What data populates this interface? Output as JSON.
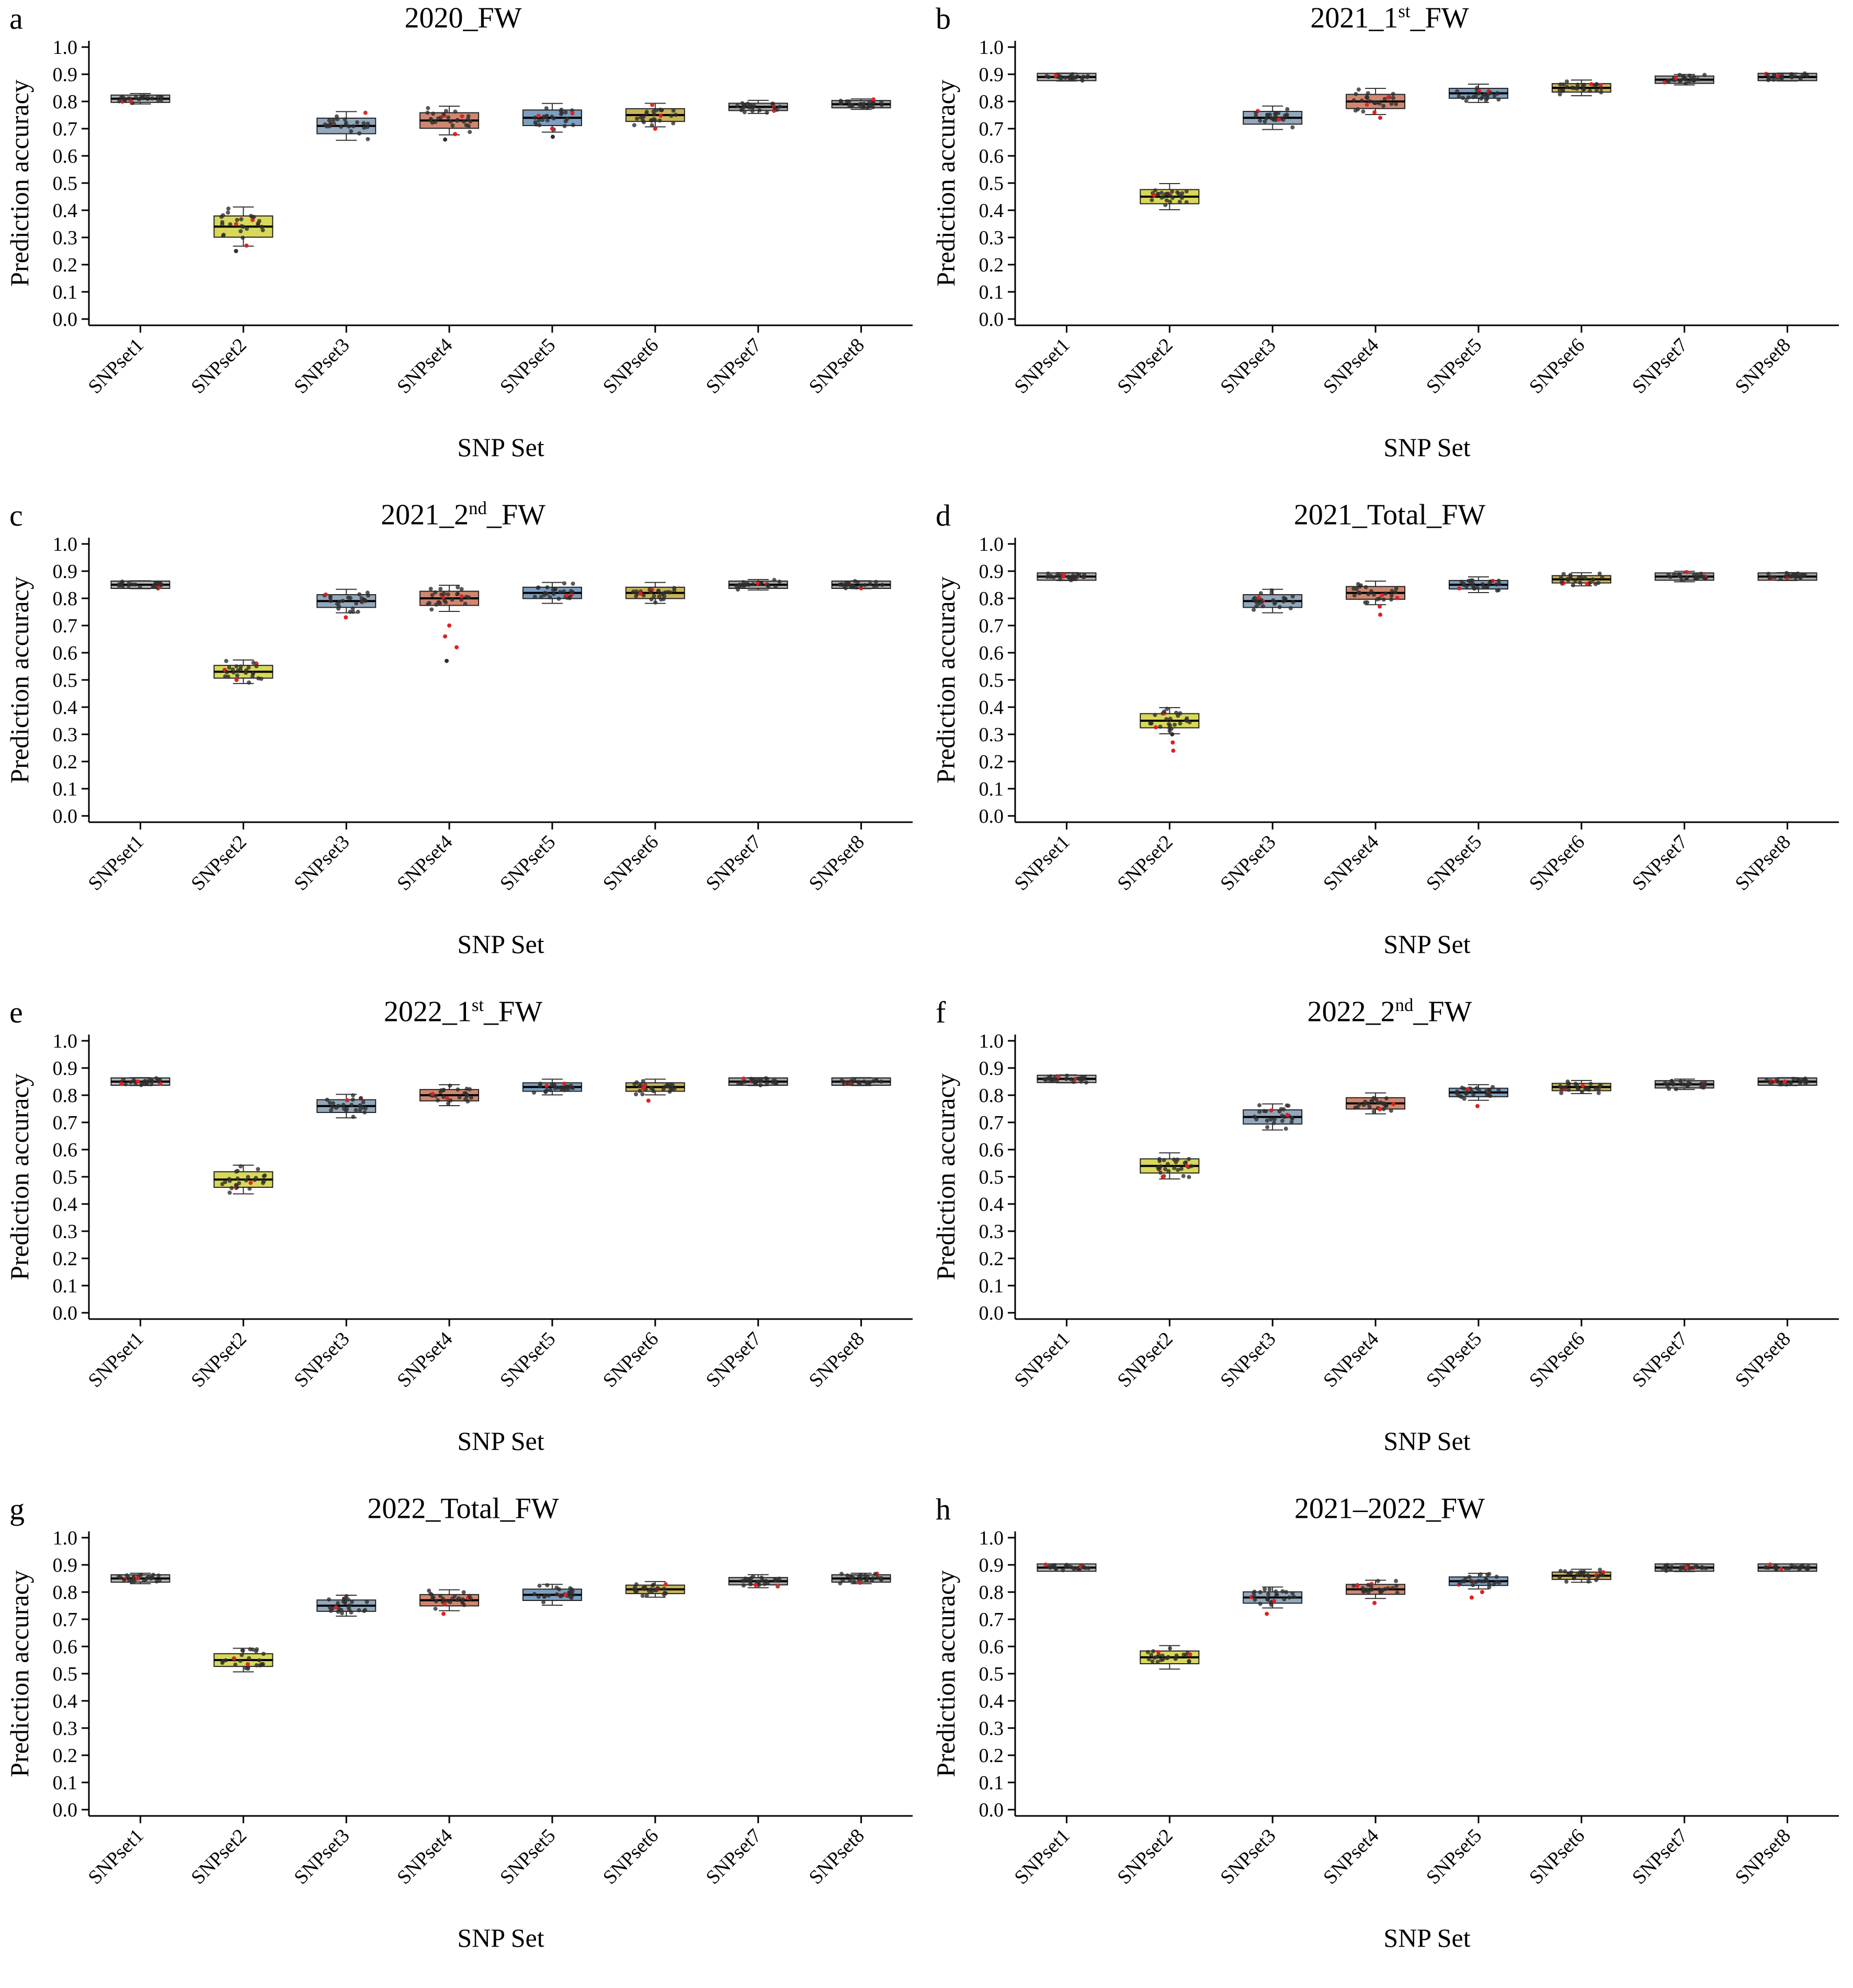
{
  "chart_data": {
    "type": "boxplot",
    "categories": [
      "SNPset1",
      "SNPset2",
      "SNPset3",
      "SNPset4",
      "SNPset5",
      "SNPset6",
      "SNPset7",
      "SNPset8"
    ],
    "xlabel": "SNP Set",
    "ylabel": "Prediction accuracy",
    "y_ticks": [
      "0.0",
      "0.1",
      "0.2",
      "0.3",
      "0.4",
      "0.5",
      "0.6",
      "0.7",
      "0.8",
      "0.9",
      "1.0"
    ],
    "ylim": [
      0.0,
      1.0
    ],
    "grid": false,
    "legend": "none",
    "box_colors": [
      "#b3b3b3",
      "#d8d85a",
      "#93a8bc",
      "#d08770",
      "#7d9fc0",
      "#c9b458",
      "#a6a6a6",
      "#a6a6a6"
    ],
    "point_color": "#2e2e2e",
    "outlier_color": "#e02020",
    "panels": [
      {
        "letter": "a",
        "title_pre": "2020_FW",
        "title_sup": "",
        "title_post": "",
        "medians": [
          0.81,
          0.34,
          0.71,
          0.73,
          0.74,
          0.75,
          0.78,
          0.79
        ],
        "sds": [
          0.008,
          0.03,
          0.022,
          0.022,
          0.022,
          0.018,
          0.01,
          0.008
        ],
        "outliers": [
          [
            2,
            0.27,
            "red"
          ],
          [
            2,
            0.25,
            "dark"
          ],
          [
            4,
            0.66,
            "dark"
          ],
          [
            4,
            0.68,
            "red"
          ],
          [
            5,
            0.67,
            "dark"
          ],
          [
            5,
            0.7,
            "red"
          ],
          [
            6,
            0.7,
            "red"
          ]
        ]
      },
      {
        "letter": "b",
        "title_pre": "2021_1",
        "title_sup": "st",
        "title_post": "_FW",
        "medians": [
          0.89,
          0.45,
          0.74,
          0.8,
          0.83,
          0.85,
          0.88,
          0.89
        ],
        "sds": [
          0.006,
          0.02,
          0.018,
          0.02,
          0.014,
          0.012,
          0.008,
          0.006
        ],
        "outliers": [
          [
            4,
            0.74,
            "red"
          ],
          [
            4,
            0.76,
            "red"
          ]
        ]
      },
      {
        "letter": "c",
        "title_pre": "2021_2",
        "title_sup": "nd",
        "title_post": "_FW",
        "medians": [
          0.85,
          0.53,
          0.79,
          0.8,
          0.82,
          0.82,
          0.85,
          0.85
        ],
        "sds": [
          0.006,
          0.018,
          0.018,
          0.02,
          0.016,
          0.016,
          0.008,
          0.006
        ],
        "outliers": [
          [
            4,
            0.57,
            "dark"
          ],
          [
            4,
            0.62,
            "red"
          ],
          [
            4,
            0.66,
            "red"
          ],
          [
            4,
            0.7,
            "red"
          ],
          [
            3,
            0.73,
            "red"
          ],
          [
            2,
            0.5,
            "red"
          ]
        ]
      },
      {
        "letter": "d",
        "title_pre": "2021_Total_FW",
        "title_sup": "",
        "title_post": "",
        "medians": [
          0.88,
          0.35,
          0.79,
          0.82,
          0.85,
          0.87,
          0.88,
          0.88
        ],
        "sds": [
          0.006,
          0.02,
          0.018,
          0.018,
          0.012,
          0.01,
          0.008,
          0.006
        ],
        "outliers": [
          [
            2,
            0.24,
            "red"
          ],
          [
            2,
            0.27,
            "red"
          ],
          [
            2,
            0.3,
            "dark"
          ],
          [
            4,
            0.74,
            "red"
          ],
          [
            4,
            0.77,
            "red"
          ],
          [
            1,
            0.88,
            "red"
          ]
        ]
      },
      {
        "letter": "e",
        "title_pre": "2022_1",
        "title_sup": "st",
        "title_post": "_FW",
        "medians": [
          0.85,
          0.49,
          0.76,
          0.8,
          0.83,
          0.83,
          0.85,
          0.85
        ],
        "sds": [
          0.006,
          0.022,
          0.018,
          0.016,
          0.012,
          0.012,
          0.006,
          0.006
        ],
        "outliers": [
          [
            6,
            0.78,
            "red"
          ],
          [
            1,
            0.85,
            "red"
          ]
        ]
      },
      {
        "letter": "f",
        "title_pre": "2022_2",
        "title_sup": "nd",
        "title_post": "_FW",
        "medians": [
          0.86,
          0.54,
          0.72,
          0.77,
          0.81,
          0.83,
          0.84,
          0.85
        ],
        "sds": [
          0.006,
          0.02,
          0.02,
          0.016,
          0.012,
          0.01,
          0.008,
          0.006
        ],
        "outliers": [
          [
            5,
            0.76,
            "red"
          ],
          [
            2,
            0.5,
            "red"
          ],
          [
            8,
            0.85,
            "red"
          ]
        ]
      },
      {
        "letter": "g",
        "title_pre": "2022_Total_FW",
        "title_sup": "",
        "title_post": "",
        "medians": [
          0.85,
          0.55,
          0.75,
          0.77,
          0.79,
          0.81,
          0.84,
          0.85
        ],
        "sds": [
          0.008,
          0.018,
          0.016,
          0.016,
          0.016,
          0.012,
          0.01,
          0.008
        ],
        "outliers": [
          [
            4,
            0.72,
            "red"
          ],
          [
            1,
            0.85,
            "red"
          ]
        ]
      },
      {
        "letter": "h",
        "title_pre": "2021–2022_FW",
        "title_sup": "",
        "title_post": "",
        "medians": [
          0.89,
          0.56,
          0.78,
          0.81,
          0.84,
          0.86,
          0.89,
          0.89
        ],
        "sds": [
          0.005,
          0.018,
          0.016,
          0.014,
          0.012,
          0.01,
          0.006,
          0.005
        ],
        "outliers": [
          [
            3,
            0.72,
            "red"
          ],
          [
            4,
            0.76,
            "red"
          ],
          [
            5,
            0.78,
            "red"
          ],
          [
            5,
            0.8,
            "red"
          ],
          [
            7,
            0.89,
            "red"
          ]
        ]
      }
    ]
  }
}
